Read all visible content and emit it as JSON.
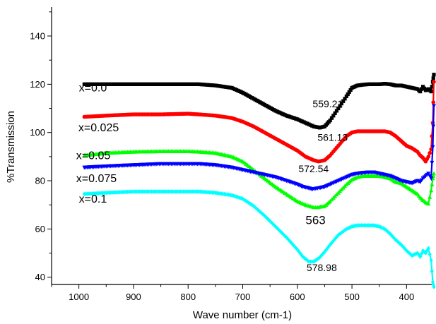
{
  "chart_data": {
    "type": "line",
    "title": "",
    "xlabel": "Wave number (cm-1)",
    "ylabel": "%Transmission",
    "xlim": [
      1050,
      350
    ],
    "ylim": [
      37,
      152
    ],
    "x_ticks": [
      "1000",
      "900",
      "800",
      "700",
      "600",
      "500",
      "400"
    ],
    "y_ticks": [
      "40",
      "60",
      "80",
      "100",
      "120",
      "140"
    ],
    "grid": false,
    "series": [
      {
        "name": "x=0.0",
        "color": "#000000",
        "marker": "square",
        "x": [
          990,
          950,
          900,
          850,
          800,
          780,
          750,
          720,
          700,
          680,
          660,
          640,
          620,
          600,
          585,
          570,
          559,
          550,
          540,
          525,
          510,
          500,
          490,
          480,
          470,
          460,
          450,
          440,
          430,
          420,
          410,
          400,
          390,
          380,
          375,
          370,
          365,
          360,
          355,
          352,
          350
        ],
        "y": [
          120,
          120,
          120,
          120,
          120,
          120,
          119.5,
          118.5,
          116.5,
          114,
          111.5,
          109,
          107,
          105.5,
          104,
          102.5,
          102,
          102.5,
          105,
          110,
          115,
          118.5,
          119.5,
          119.8,
          120,
          120,
          120,
          120.2,
          120,
          119.5,
          119.5,
          119,
          118.5,
          118,
          117,
          119,
          117.5,
          118,
          117,
          121,
          124
        ]
      },
      {
        "name": "x=0.025",
        "color": "#ff0000",
        "marker": "circle",
        "x": [
          990,
          950,
          900,
          850,
          800,
          780,
          750,
          720,
          700,
          680,
          660,
          640,
          620,
          600,
          585,
          570,
          561,
          550,
          540,
          525,
          510,
          500,
          490,
          480,
          470,
          460,
          450,
          440,
          430,
          420,
          410,
          400,
          390,
          380,
          375,
          370,
          365,
          360,
          355,
          352,
          350
        ],
        "y": [
          106.5,
          107,
          107.5,
          107.5,
          107.8,
          107.5,
          107,
          106,
          104.5,
          102.5,
          100,
          97.5,
          95,
          92.5,
          90,
          88.5,
          88,
          88.5,
          90.5,
          94.5,
          98.5,
          100,
          100.5,
          100.5,
          100.5,
          100.5,
          100.5,
          100.5,
          100,
          98.5,
          96.5,
          94.5,
          93.5,
          92,
          90.5,
          89.5,
          88,
          90,
          93,
          104,
          121
        ]
      },
      {
        "name": "x=0.05",
        "color": "#00ff00",
        "marker": "triangle",
        "x": [
          990,
          950,
          900,
          850,
          800,
          780,
          750,
          720,
          700,
          680,
          660,
          640,
          620,
          600,
          585,
          570,
          563,
          550,
          540,
          525,
          510,
          500,
          490,
          480,
          470,
          460,
          450,
          440,
          430,
          420,
          410,
          400,
          390,
          380,
          375,
          370,
          365,
          360,
          355,
          352,
          350
        ],
        "y": [
          90.5,
          91.5,
          92,
          92.2,
          92.2,
          92,
          91.5,
          90,
          88,
          84.5,
          81,
          77.5,
          74.5,
          71.5,
          70,
          69,
          69,
          69.5,
          71.5,
          75,
          78.5,
          80.5,
          81.5,
          82,
          82,
          82,
          82,
          81.5,
          81,
          79.5,
          79,
          77.5,
          76,
          74.5,
          73,
          72,
          71,
          70.5,
          76,
          81,
          83
        ]
      },
      {
        "name": "x=0.075",
        "color": "#0000ff",
        "marker": "triangle-down",
        "x": [
          990,
          950,
          900,
          850,
          800,
          780,
          750,
          720,
          700,
          680,
          660,
          640,
          620,
          600,
          590,
          580,
          572.54,
          560,
          550,
          540,
          525,
          510,
          500,
          490,
          480,
          470,
          460,
          450,
          440,
          430,
          420,
          410,
          400,
          390,
          380,
          375,
          370,
          365,
          360,
          355,
          352,
          350
        ],
        "y": [
          85.5,
          86,
          86.5,
          87,
          87,
          87,
          86.5,
          85.5,
          84.5,
          83.5,
          82.5,
          81.5,
          80,
          78.5,
          77.5,
          77,
          76.5,
          77,
          77.5,
          78.5,
          80,
          81.5,
          82.5,
          83,
          83.3,
          83.5,
          83.5,
          83,
          82.5,
          82,
          81,
          80,
          79.5,
          79,
          80,
          79.5,
          81,
          82,
          83,
          81,
          94,
          111
        ]
      },
      {
        "name": "x=0.1",
        "color": "#00ffff",
        "marker": "diamond",
        "x": [
          990,
          950,
          900,
          850,
          800,
          780,
          750,
          720,
          700,
          680,
          660,
          640,
          620,
          600,
          590,
          578.98,
          570,
          560,
          550,
          540,
          525,
          510,
          500,
          490,
          480,
          470,
          460,
          450,
          440,
          430,
          420,
          410,
          400,
          390,
          380,
          375,
          370,
          365,
          360,
          355,
          352,
          350
        ],
        "y": [
          74.5,
          75,
          75.5,
          75.5,
          75.5,
          75.5,
          75,
          74,
          72.5,
          69.5,
          65.5,
          61,
          56.5,
          51.5,
          48.5,
          46.5,
          46.5,
          48,
          50.5,
          53.5,
          57.5,
          60,
          61,
          61.5,
          61.5,
          61.5,
          61.5,
          61,
          60,
          58,
          55.5,
          53.5,
          51,
          49,
          50,
          48.5,
          51,
          50,
          52,
          47,
          38,
          36
        ]
      }
    ],
    "series_labels": [
      {
        "text": "x=0.0",
        "x": 1000,
        "y": 117
      },
      {
        "text": "x=0.025",
        "x": 1001,
        "y": 100.5
      },
      {
        "text": "x=0.05",
        "x": 1005,
        "y": 89
      },
      {
        "text": "x=0.075",
        "x": 1005,
        "y": 79.5
      },
      {
        "text": "x=0.1",
        "x": 1000,
        "y": 71
      }
    ],
    "annotations": [
      {
        "text": "559.21",
        "x": 572,
        "y": 110.5
      },
      {
        "text": "561.13",
        "x": 563,
        "y": 96.5
      },
      {
        "text": "572.54",
        "x": 598,
        "y": 83.5
      },
      {
        "text": "563",
        "x": 585,
        "y": 62
      },
      {
        "text": "578.98",
        "x": 583,
        "y": 42.5
      }
    ]
  }
}
